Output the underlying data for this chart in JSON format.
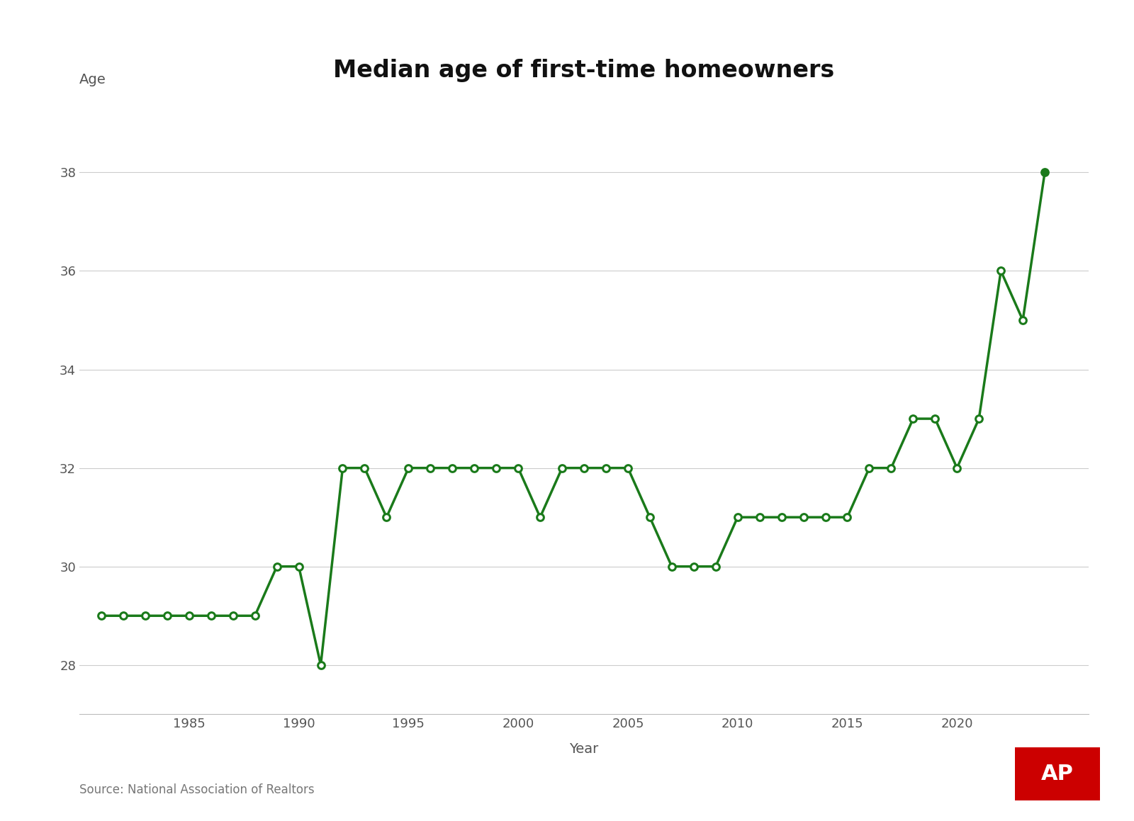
{
  "title": "Median age of first-time homeowners",
  "ylabel": "Age",
  "xlabel": "Year",
  "source": "Source: National Association of Realtors",
  "line_color": "#1a7a1a",
  "background_color": "#ffffff",
  "years": [
    1981,
    1982,
    1983,
    1984,
    1985,
    1986,
    1987,
    1988,
    1989,
    1990,
    1991,
    1992,
    1993,
    1994,
    1995,
    1996,
    1997,
    1998,
    1999,
    2000,
    2001,
    2002,
    2003,
    2004,
    2005,
    2006,
    2007,
    2008,
    2009,
    2010,
    2011,
    2012,
    2013,
    2014,
    2015,
    2016,
    2017,
    2018,
    2019,
    2020,
    2021,
    2022,
    2023,
    2024
  ],
  "ages": [
    29,
    29,
    29,
    29,
    29,
    29,
    29,
    29,
    30,
    30,
    28,
    32,
    32,
    31,
    32,
    32,
    32,
    32,
    32,
    32,
    31,
    32,
    32,
    32,
    32,
    31,
    30,
    30,
    30,
    31,
    31,
    31,
    31,
    31,
    31,
    32,
    32,
    33,
    33,
    32,
    33,
    36,
    35,
    38
  ],
  "ylim": [
    27,
    39.5
  ],
  "yticks": [
    28,
    30,
    32,
    34,
    36,
    38
  ],
  "xticks": [
    1985,
    1990,
    1995,
    2000,
    2005,
    2010,
    2015,
    2020
  ],
  "xlim_left": 1980,
  "xlim_right": 2026,
  "title_fontsize": 24,
  "label_fontsize": 14,
  "tick_fontsize": 13,
  "source_fontsize": 12,
  "marker_size": 7,
  "line_width": 2.5,
  "ap_logo_text": "AP",
  "ap_logo_bg": "#cc0000",
  "ap_logo_fg": "#ffffff"
}
